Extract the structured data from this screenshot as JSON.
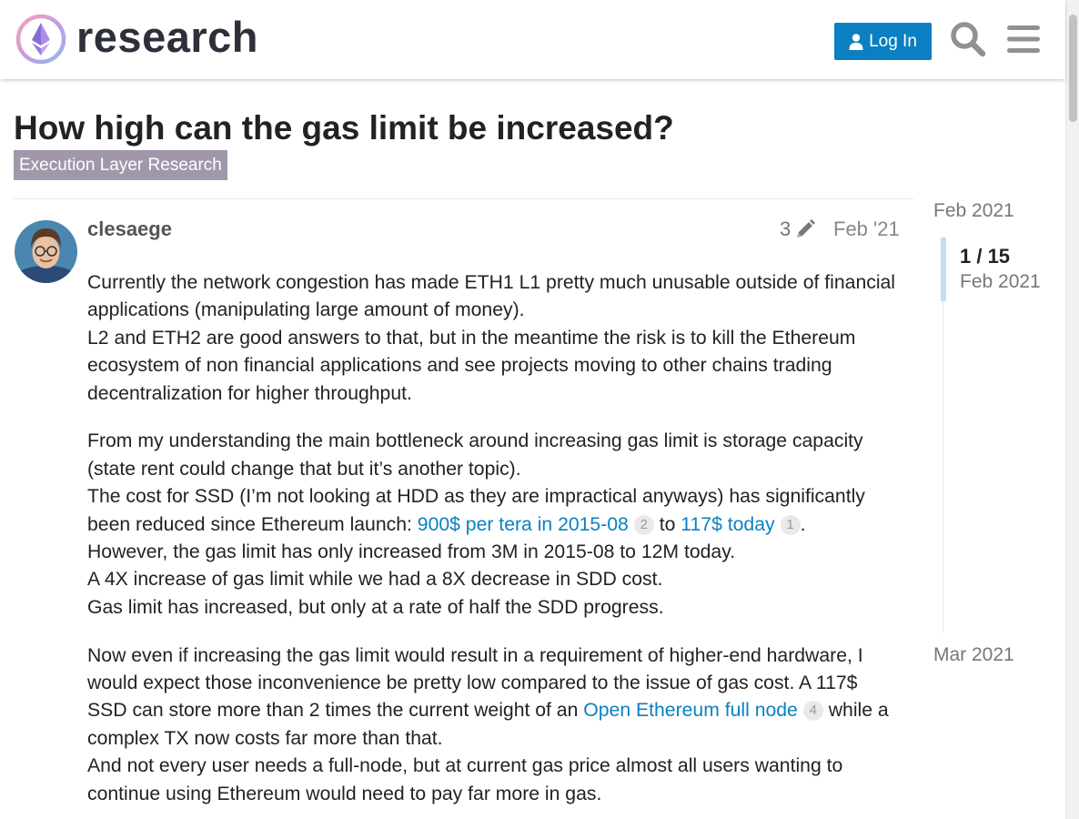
{
  "header": {
    "site_name": "research",
    "login_label": "Log In"
  },
  "topic": {
    "title": "How high can the gas limit be increased?",
    "category": "Execution Layer Research"
  },
  "post": {
    "username": "clesaege",
    "edit_count": "3",
    "date": "Feb '21",
    "paragraphs": {
      "p1_a": "Currently the network congestion has made ETH1 L1 pretty much unusable outside of financial applications (manipulating large amount of money).",
      "p1_b": "L2 and ETH2 are good answers to that, but in the meantime the risk is to kill the Ethereum ecosystem of non financial applications and see projects moving to other chains trading decentralization for higher throughput.",
      "p2_a": "From my understanding the main bottleneck around increasing gas limit is storage capacity (state rent could change that but it’s another topic).",
      "p2_b_pre": "The cost for SSD (I’m not looking at HDD as they are impractical anyways) has significantly been reduced since Ethereum launch: ",
      "p2_link1": "900$ per tera in 2015-08",
      "p2_link1_count": "2",
      "p2_mid": " to ",
      "p2_link2": "117$ today",
      "p2_link2_count": "1",
      "p2_end": ".",
      "p2_c": "However, the gas limit has only increased from 3M in 2015-08 to 12M today.",
      "p2_d": "A 4X increase of gas limit while we had a 8X decrease in SDD cost.",
      "p2_e": "Gas limit has increased, but only at a rate of half the SDD progress.",
      "p3_a_pre": "Now even if increasing the gas limit would result in a requirement of higher-end hardware, I would expect those inconvenience be pretty low compared to the issue of gas cost. A 117$ SSD can store more than 2 times the current weight of an ",
      "p3_link": "Open Ethereum full node",
      "p3_link_count": "4",
      "p3_a_post": " while a complex TX now costs far more than that.",
      "p3_b": "And not every user needs a full-node, but at current gas price almost all users wanting to continue using Ethereum would need to pay far more in gas."
    }
  },
  "timeline": {
    "start_date": "Feb 2021",
    "position": "1 / 15",
    "position_date": "Feb 2021",
    "end_date": "Mar 2021"
  },
  "icons": {
    "logo": "ethereum-research-logo",
    "login": "user-icon",
    "search": "search-icon",
    "menu": "hamburger-menu-icon",
    "edit": "pencil-icon"
  },
  "colors": {
    "accent": "#0a80c2",
    "category": "#a197aa",
    "timeline_handle": "#bfe0f2"
  }
}
